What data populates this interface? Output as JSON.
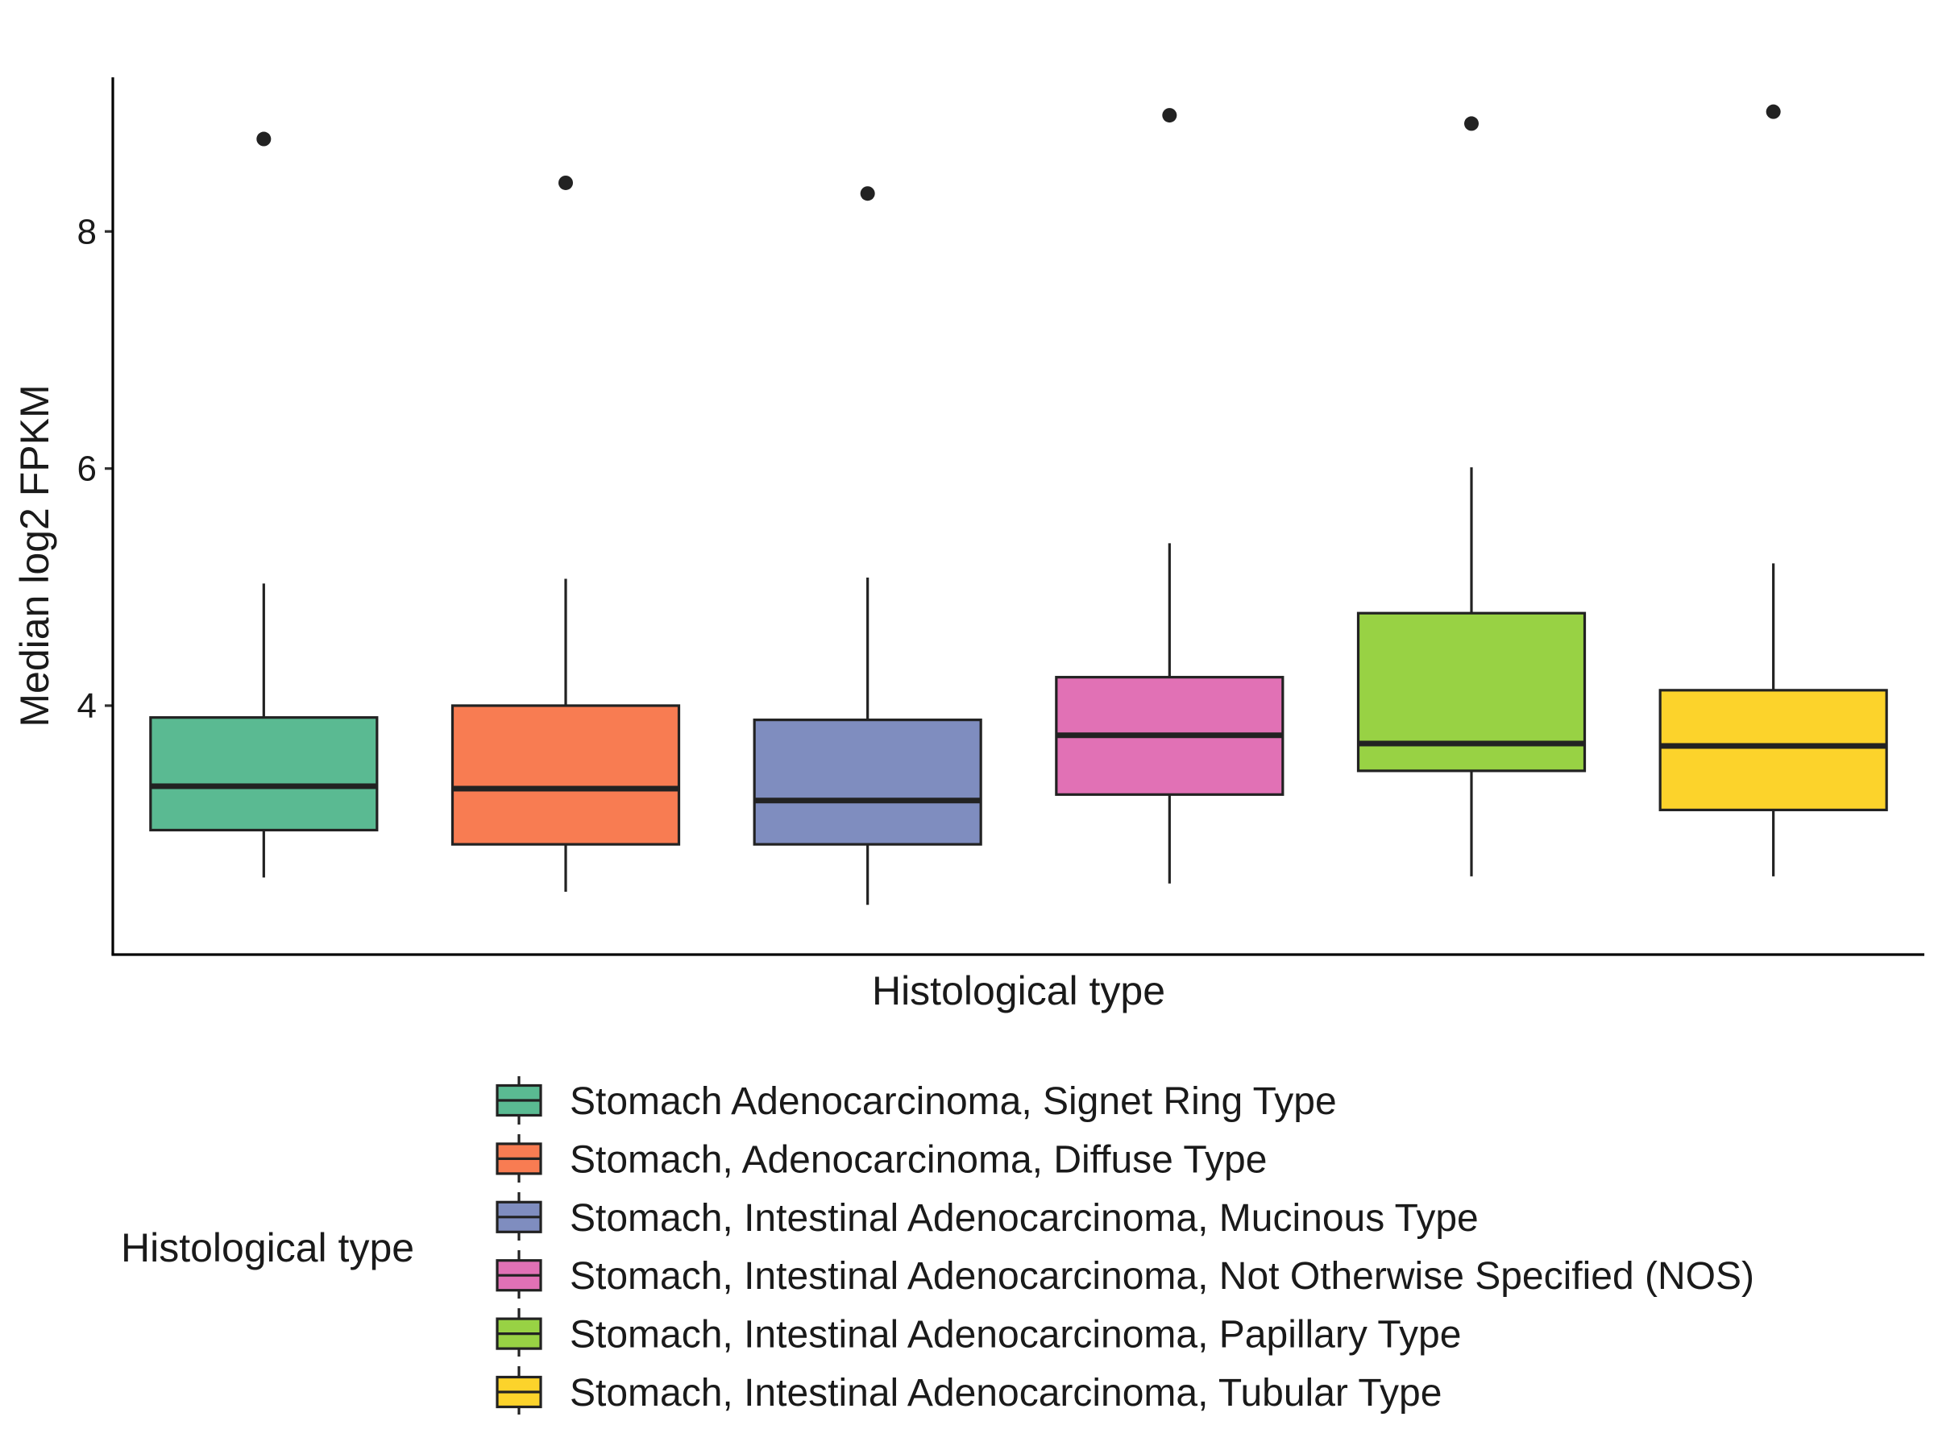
{
  "chart_data": {
    "type": "box",
    "title": "",
    "xlabel": "Histological type",
    "ylabel": "Median log2 FPKM",
    "ylim": [
      1.9,
      9.3
    ],
    "yticks": [
      4,
      6,
      8
    ],
    "ytick_labels": [
      "4",
      "6",
      "8"
    ],
    "grid": false,
    "legend": {
      "title": "Histological type",
      "position": "bottom"
    },
    "categories": [
      "Stomach Adenocarcinoma, Signet Ring Type",
      "Stomach, Adenocarcinoma, Diffuse Type",
      "Stomach, Intestinal Adenocarcinoma, Mucinous Type",
      "Stomach, Intestinal Adenocarcinoma, Not Otherwise Specified (NOS)",
      "Stomach, Intestinal Adenocarcinoma, Papillary Type",
      "Stomach, Intestinal Adenocarcinoma, Tubular Type"
    ],
    "series": [
      {
        "name": "Stomach Adenocarcinoma, Signet Ring Type",
        "color": "#5aba92",
        "whisker_low": 2.55,
        "q1": 2.95,
        "median": 3.32,
        "q3": 3.9,
        "whisker_high": 5.03,
        "outliers": [
          8.78
        ]
      },
      {
        "name": "Stomach, Adenocarcinoma, Diffuse Type",
        "color": "#f87c52",
        "whisker_low": 2.43,
        "q1": 2.83,
        "median": 3.3,
        "q3": 4.0,
        "whisker_high": 5.07,
        "outliers": [
          8.41
        ]
      },
      {
        "name": "Stomach, Intestinal Adenocarcinoma, Mucinous Type",
        "color": "#7f8dbf",
        "whisker_low": 2.32,
        "q1": 2.83,
        "median": 3.2,
        "q3": 3.88,
        "whisker_high": 5.08,
        "outliers": [
          8.32
        ]
      },
      {
        "name": "Stomach, Intestinal Adenocarcinoma, Not Otherwise Specified (NOS)",
        "color": "#e171b5",
        "whisker_low": 2.5,
        "q1": 3.25,
        "median": 3.75,
        "q3": 4.24,
        "whisker_high": 5.37,
        "outliers": [
          8.98
        ]
      },
      {
        "name": "Stomach, Intestinal Adenocarcinoma, Papillary Type",
        "color": "#98d244",
        "whisker_low": 2.56,
        "q1": 3.45,
        "median": 3.68,
        "q3": 4.78,
        "whisker_high": 6.01,
        "outliers": [
          8.91
        ]
      },
      {
        "name": "Stomach, Intestinal Adenocarcinoma, Tubular Type",
        "color": "#fcd32b",
        "whisker_low": 2.56,
        "q1": 3.12,
        "median": 3.66,
        "q3": 4.13,
        "whisker_high": 5.2,
        "outliers": [
          9.01
        ]
      }
    ]
  }
}
